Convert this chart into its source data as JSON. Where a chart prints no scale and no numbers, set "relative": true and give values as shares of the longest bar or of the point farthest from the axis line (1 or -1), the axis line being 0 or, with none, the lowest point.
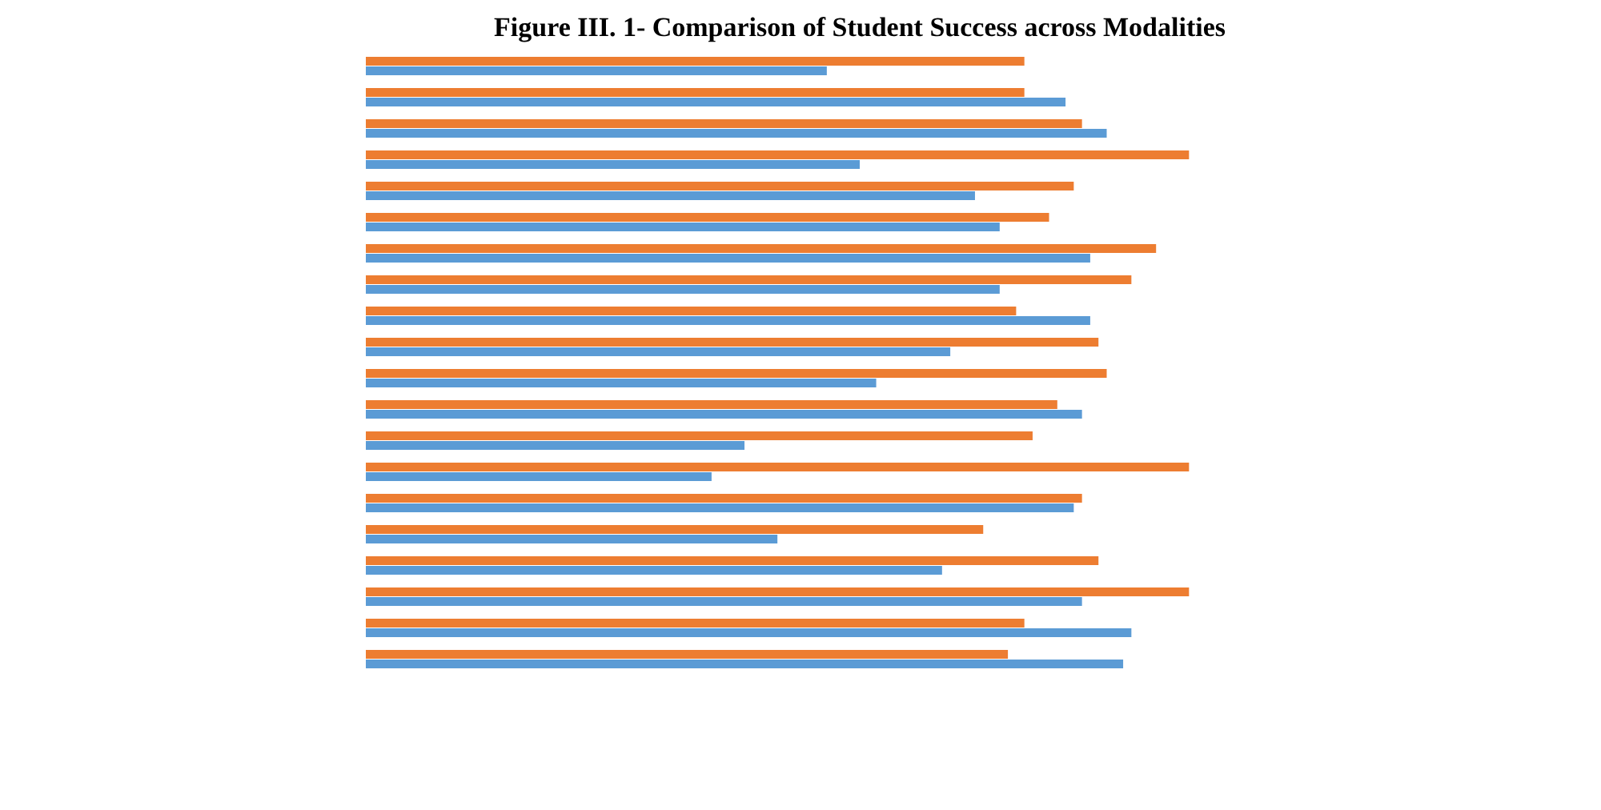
{
  "chart_data": {
    "type": "bar",
    "orientation": "horizontal",
    "relative": true,
    "title": "Figure III. 1- Comparison of Student Success across Modalities",
    "categories": [
      null,
      null,
      null,
      null,
      null,
      null,
      null,
      null,
      null,
      null,
      null,
      null,
      null,
      null,
      null,
      null,
      null,
      null,
      null,
      null
    ],
    "series": [
      {
        "color": "#ed7d31",
        "values": [
          0.8,
          0.8,
          0.87,
          1.0,
          0.86,
          0.83,
          0.96,
          0.93,
          0.79,
          0.89,
          0.9,
          0.84,
          0.81,
          1.0,
          0.87,
          0.75,
          0.89,
          1.0,
          0.8,
          0.78
        ]
      },
      {
        "color": "#5b9bd5",
        "values": [
          0.56,
          0.85,
          0.9,
          0.6,
          0.74,
          0.77,
          0.88,
          0.77,
          0.88,
          0.71,
          0.62,
          0.87,
          0.46,
          0.42,
          0.86,
          0.5,
          0.7,
          0.87,
          0.93,
          0.92
        ]
      }
    ]
  }
}
